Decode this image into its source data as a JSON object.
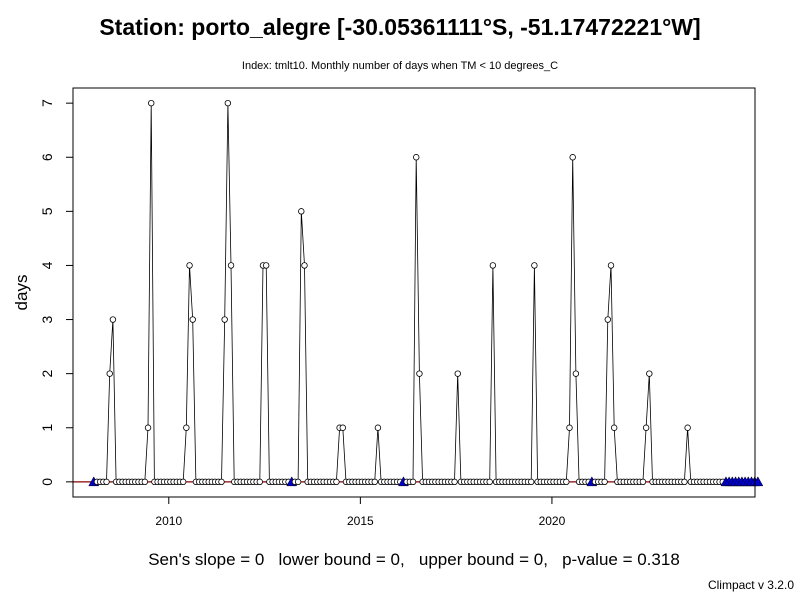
{
  "page": {
    "title": "Station: porto_alegre [-30.05361111°S, -51.17472221°W]",
    "subtitle": "Index: tmlt10. Monthly number of days when TM < 10 degrees_C",
    "stats": "Sen's slope = 0   lower bound = 0,   upper bound = 0,   p-value = 0.318",
    "version": "Climpact v 3.2.0"
  },
  "colors": {
    "series_line": "#000000",
    "trend_line": "#8b0000",
    "missing_marker": "#0000cd",
    "background": "#ffffff"
  },
  "chart_data": {
    "type": "line",
    "title": "Station: porto_alegre [-30.05361111°S, -51.17472221°W]",
    "subtitle": "Index: tmlt10. Monthly number of days when TM < 10 degrees_C",
    "xlabel": "",
    "ylabel": "days",
    "xlim": [
      2007.5,
      2025.3
    ],
    "ylim": [
      -0.28,
      7.28
    ],
    "x_ticks": [
      2010,
      2015,
      2020
    ],
    "y_ticks": [
      0,
      1,
      2,
      3,
      4,
      5,
      6,
      7
    ],
    "grid": false,
    "start_year": 2008,
    "series": [
      {
        "values": [
          null,
          0,
          0,
          0,
          0,
          2,
          3,
          0,
          0,
          0,
          0,
          0,
          0,
          0,
          0,
          0,
          0,
          1,
          7,
          0,
          0,
          0,
          0,
          0,
          0,
          0,
          0,
          0,
          0,
          1,
          4,
          3,
          0,
          0,
          0,
          0,
          0,
          0,
          0,
          0,
          0,
          3,
          7,
          4,
          0,
          0,
          0,
          0,
          0,
          0,
          0,
          0,
          0,
          4,
          4,
          0,
          0,
          0,
          0,
          0,
          0,
          0,
          null,
          0,
          0,
          5,
          4,
          0,
          0,
          0,
          0,
          0,
          0,
          0,
          0,
          0,
          0,
          1,
          1,
          0,
          0,
          0,
          0,
          0,
          0,
          0,
          0,
          0,
          0,
          1,
          0,
          0,
          0,
          0,
          0,
          0,
          0,
          null,
          0,
          0,
          0,
          6,
          2,
          0,
          0,
          0,
          0,
          0,
          0,
          0,
          0,
          0,
          0,
          0,
          2,
          0,
          0,
          0,
          0,
          0,
          0,
          0,
          0,
          0,
          0,
          4,
          0,
          0,
          0,
          0,
          0,
          0,
          0,
          0,
          0,
          0,
          0,
          0,
          4,
          0,
          0,
          0,
          0,
          0,
          0,
          0,
          0,
          0,
          0,
          1,
          6,
          2,
          0,
          0,
          0,
          0,
          null,
          0,
          0,
          0,
          0,
          3,
          4,
          1,
          0,
          0,
          0,
          0,
          0,
          0,
          0,
          0,
          0,
          1,
          2,
          0,
          0,
          0,
          0,
          0,
          0,
          0,
          0,
          0,
          0,
          0,
          1,
          0,
          0,
          0,
          0,
          0,
          0,
          0,
          0,
          0,
          0,
          0,
          null,
          null,
          null,
          null,
          null,
          null,
          null,
          null,
          null,
          null,
          null
        ]
      }
    ],
    "missing_marker_value": 0,
    "trend": {
      "slope": 0,
      "intercept": 0
    },
    "stats": {
      "sens_slope": 0,
      "lower_bound": 0,
      "upper_bound": 0,
      "p_value": 0.318
    }
  }
}
